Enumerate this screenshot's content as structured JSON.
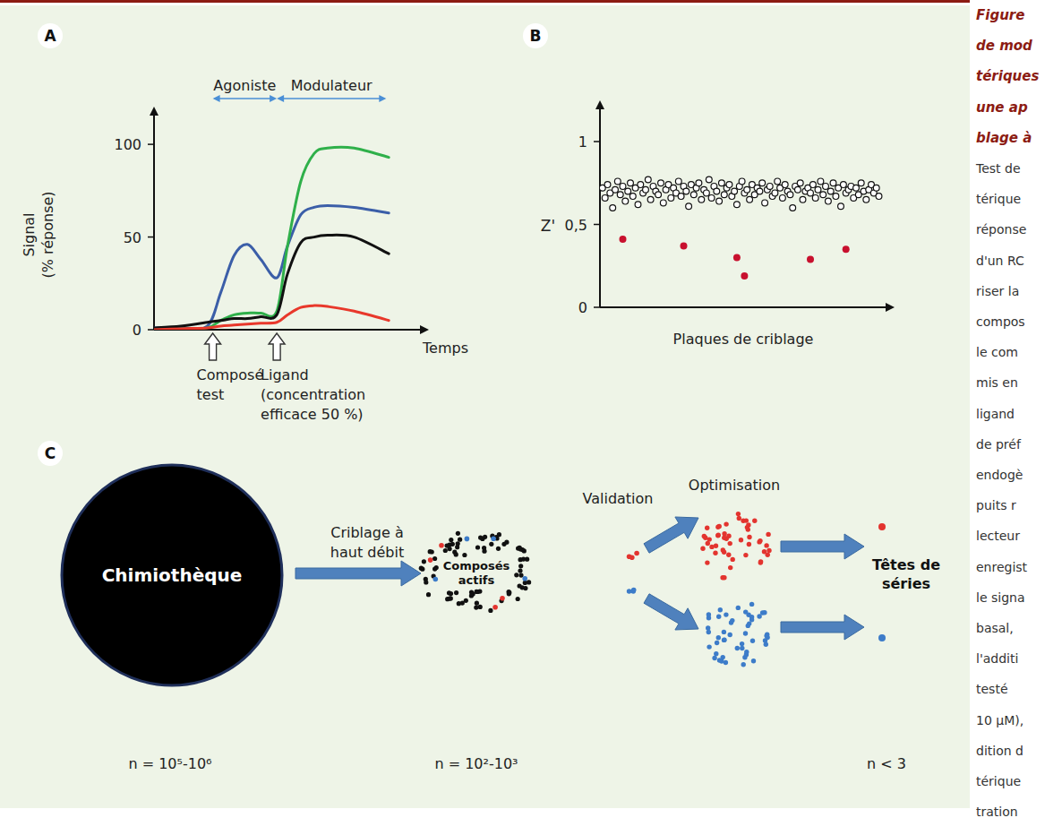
{
  "chart_data": [
    {
      "type": "line",
      "title": "A",
      "xlabel": "Temps",
      "ylabel": "Signal\n(% réponse)",
      "x": [
        0,
        10,
        20,
        25,
        30,
        35,
        40,
        46,
        50,
        55,
        60,
        65,
        75,
        88
      ],
      "series": [
        {
          "color": "#3b5ea8",
          "values": [
            1,
            1,
            2,
            20,
            40,
            46,
            38,
            28,
            45,
            62,
            66,
            67,
            66,
            63
          ]
        },
        {
          "color": "#2fb04a",
          "values": [
            0,
            0.5,
            1,
            5,
            8,
            9,
            9,
            10,
            45,
            80,
            95,
            98,
            98,
            93
          ]
        },
        {
          "color": "#111111",
          "values": [
            1,
            2,
            4,
            5,
            6,
            6,
            7,
            8,
            30,
            47,
            50,
            51,
            50,
            41
          ]
        },
        {
          "color": "#e8382b",
          "values": [
            0,
            0.5,
            1,
            2,
            2.5,
            3,
            3.5,
            4,
            8,
            12,
            13,
            12.5,
            10,
            5
          ]
        }
      ],
      "xlim": [
        0,
        100
      ],
      "ylim": [
        0,
        116
      ],
      "xticks": [],
      "yticks": [
        0,
        50,
        100
      ],
      "tick_labels": "y",
      "grid": false,
      "annotations": [
        {
          "text": "Agoniste",
          "x": [
            22,
            46
          ]
        },
        {
          "text": "Modulateur",
          "x": [
            46,
            87
          ]
        },
        {
          "text": "Composé\ntest",
          "x": 22
        },
        {
          "text": "Ligand\n(concentration\nefficace 50 %)",
          "x": 46
        }
      ]
    },
    {
      "type": "scatter",
      "title": "B",
      "xlabel": "Plaques de criblage",
      "ylabel": "Z'",
      "xlim": [
        0,
        113
      ],
      "ylim": [
        0,
        1.2
      ],
      "xticks": [],
      "yticks": [
        0,
        {
          "value": 0.5,
          "label": "0,5"
        },
        1
      ],
      "tick_labels": "y",
      "grid": false,
      "series": [
        {
          "color": "#111111",
          "marker": "open-circle",
          "x": [
            1,
            2,
            3,
            4,
            5,
            6,
            7,
            8,
            9,
            10,
            11,
            12,
            13,
            14,
            15,
            16,
            17,
            18,
            19,
            20,
            21,
            22,
            23,
            24,
            25,
            26,
            27,
            28,
            29,
            30,
            31,
            32,
            33,
            34,
            35,
            36,
            37,
            38,
            39,
            40,
            41,
            42,
            43,
            44,
            45,
            46,
            47,
            48,
            49,
            50,
            51,
            52,
            53,
            54,
            55,
            56,
            57,
            58,
            59,
            60,
            61,
            62,
            63,
            64,
            65,
            66,
            67,
            68,
            69,
            70,
            71,
            72,
            73,
            74,
            75,
            76,
            77,
            78,
            79,
            80,
            81,
            82,
            83,
            84,
            85,
            86,
            87,
            88,
            89,
            90,
            91,
            92,
            93,
            94,
            95,
            96,
            97,
            98,
            99,
            100,
            101,
            102,
            103,
            104,
            105,
            106,
            107,
            108,
            109,
            110
          ],
          "values": [
            0.72,
            0.66,
            0.74,
            0.69,
            0.6,
            0.71,
            0.76,
            0.68,
            0.73,
            0.64,
            0.7,
            0.75,
            0.67,
            0.72,
            0.62,
            0.74,
            0.69,
            0.71,
            0.77,
            0.65,
            0.73,
            0.7,
            0.68,
            0.75,
            0.63,
            0.71,
            0.74,
            0.66,
            0.72,
            0.69,
            0.76,
            0.67,
            0.73,
            0.7,
            0.61,
            0.74,
            0.68,
            0.72,
            0.75,
            0.65,
            0.71,
            0.69,
            0.77,
            0.66,
            0.73,
            0.7,
            0.64,
            0.75,
            0.68,
            0.72,
            0.74,
            0.67,
            0.7,
            0.62,
            0.73,
            0.76,
            0.69,
            0.71,
            0.65,
            0.74,
            0.68,
            0.72,
            0.7,
            0.75,
            0.63,
            0.71,
            0.73,
            0.67,
            0.69,
            0.76,
            0.72,
            0.66,
            0.74,
            0.7,
            0.68,
            0.6,
            0.73,
            0.71,
            0.75,
            0.65,
            0.7,
            0.72,
            0.69,
            0.74,
            0.66,
            0.71,
            0.76,
            0.68,
            0.73,
            0.64,
            0.7,
            0.75,
            0.67,
            0.72,
            0.61,
            0.74,
            0.69,
            0.71,
            0.73,
            0.66,
            0.72,
            0.68,
            0.75,
            0.7,
            0.65,
            0.71,
            0.74,
            0.69,
            0.72,
            0.67
          ]
        },
        {
          "color": "#c8102e",
          "marker": "circle",
          "x": [
            9,
            33,
            54,
            57,
            83,
            97
          ],
          "values": [
            0.41,
            0.37,
            0.3,
            0.19,
            0.29,
            0.35
          ]
        }
      ]
    }
  ],
  "diagram": {
    "title": "C",
    "nodes": [
      {
        "label": "Chimiothèque",
        "count": "n = 10⁵-10⁶"
      },
      {
        "label": "Composés\nactifs",
        "count": "n = 10²-10³"
      },
      {
        "label": "Têtes de\nséries",
        "count": "n < 3"
      }
    ],
    "steps": [
      "Criblage à\nhaut débit",
      "Validation",
      "Optimisation"
    ]
  },
  "caption": {
    "title": [
      "Figure",
      "de mod",
      "tériques",
      "une ap",
      "blage à"
    ],
    "body": [
      "Test de",
      "térique",
      "réponse",
      "d'un RC",
      "riser la",
      "compos",
      "le com",
      "mis en",
      "ligand",
      "de préf",
      "endogè",
      "puits r",
      "lecteur",
      "enregist",
      "le signa",
      "basal,",
      "l'additi",
      "testé",
      "10 µM),",
      "dition d",
      "térique",
      "tration"
    ]
  }
}
